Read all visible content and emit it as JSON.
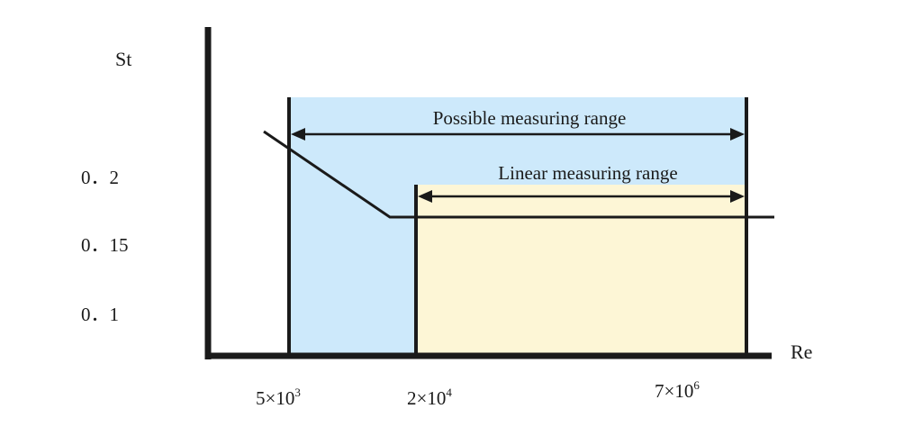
{
  "axes": {
    "y_label": "St",
    "x_label": "Re",
    "y_ticks": [
      "0．2",
      "0．15",
      "0．1"
    ],
    "x_ticks": [
      {
        "base": "5×10",
        "exp": "3"
      },
      {
        "base": "2×10",
        "exp": "4"
      },
      {
        "base": "7×10",
        "exp": "6"
      }
    ]
  },
  "ranges": {
    "possible": {
      "label": "Possible measuring range",
      "color": "#cde9fb"
    },
    "linear": {
      "label": "Linear measuring range",
      "color": "#fdf6d6"
    }
  },
  "colors": {
    "line": "#1a1a1a",
    "background": "#ffffff"
  }
}
